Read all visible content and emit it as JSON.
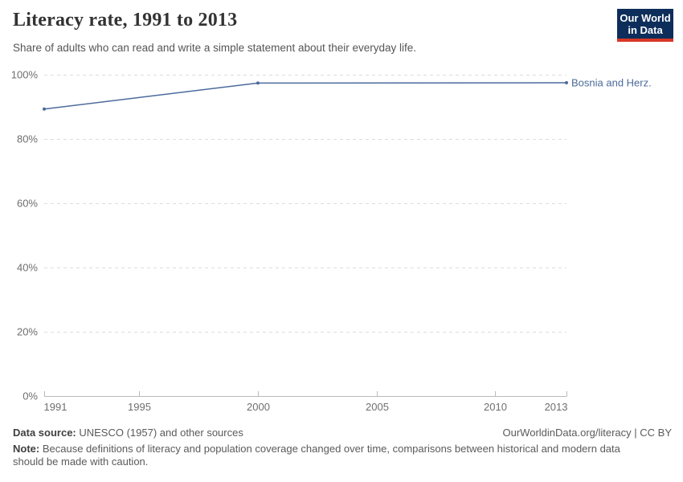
{
  "header": {
    "title": "Literacy rate, 1991 to 2013",
    "subtitle": "Share of adults who can read and write a simple statement about their everyday life.",
    "logo": {
      "line1": "Our World",
      "line2": "in Data"
    }
  },
  "chart_data": {
    "type": "line",
    "title": "Literacy rate, 1991 to 2013",
    "xlabel": "",
    "ylabel": "",
    "xlim": [
      1991,
      2013
    ],
    "ylim": [
      0,
      100
    ],
    "grid": "horizontal-dashed",
    "legend_position": "right-end-label",
    "x_ticks": [
      {
        "value": 1991,
        "label": "1991"
      },
      {
        "value": 1995,
        "label": "1995"
      },
      {
        "value": 2000,
        "label": "2000"
      },
      {
        "value": 2005,
        "label": "2005"
      },
      {
        "value": 2010,
        "label": "2010"
      },
      {
        "value": 2013,
        "label": "2013"
      }
    ],
    "y_ticks": [
      {
        "value": 0,
        "label": "0%"
      },
      {
        "value": 20,
        "label": "20%"
      },
      {
        "value": 40,
        "label": "40%"
      },
      {
        "value": 60,
        "label": "60%"
      },
      {
        "value": 80,
        "label": "80%"
      },
      {
        "value": 100,
        "label": "100%"
      }
    ],
    "series": [
      {
        "name": "Bosnia and Herz.",
        "color": "#4c6a9c",
        "points": [
          {
            "x": 1991,
            "y": 89.3
          },
          {
            "x": 2000,
            "y": 97.4
          },
          {
            "x": 2013,
            "y": 97.5
          }
        ]
      }
    ]
  },
  "footer": {
    "datasource_label": "Data source:",
    "datasource_text": " UNESCO (1957) and other sources",
    "rights": "OurWorldinData.org/literacy | CC BY",
    "note_label": "Note:",
    "note_text": " Because definitions of literacy and population coverage changed over time, comparisons between historical and modern data should be made with caution."
  },
  "colors": {
    "series": "#4c6a9c",
    "grid": "#dcdcdc",
    "axis": "#bababa",
    "axis_text": "#6e6e6e",
    "logo_bg": "#0d2e5b",
    "logo_red": "#d73727"
  }
}
